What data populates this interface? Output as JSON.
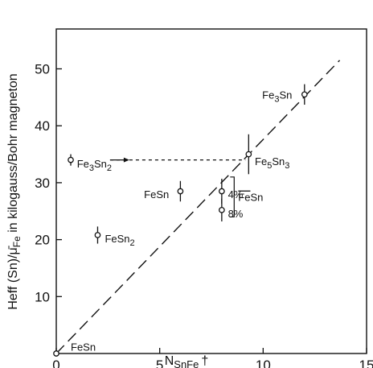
{
  "chart_data": {
    "type": "scatter",
    "title": "",
    "xlabel": "N",
    "xlabel_sub": "SnFe",
    "xlabel_suffix": "†",
    "ylabel": "Heff (Sn)/μ̄Fe in kilogauss/Bohr magneton",
    "ylabel_parts": {
      "main": "Heff (Sn)/",
      "mu": "μ̄",
      "sub": "Fe",
      "rest": " in kilogauss/Bohr magneton"
    },
    "xlim": [
      0,
      15
    ],
    "ylim": [
      0,
      57
    ],
    "xticks": [
      0,
      5,
      10,
      15
    ],
    "yticks": [
      10,
      20,
      30,
      40,
      50
    ],
    "grid": false,
    "points": [
      {
        "name": "FeSn-origin",
        "x": 0,
        "y": 0,
        "err": 0
      },
      {
        "name": "FeSn2",
        "x": 2,
        "y": 20.8,
        "err": 1.5
      },
      {
        "name": "FeSn",
        "x": 6,
        "y": 28.5,
        "err": 1.8
      },
      {
        "name": "FeSn-4pct",
        "x": 8,
        "y": 28.5,
        "err": 2.2
      },
      {
        "name": "FeSn-8pct",
        "x": 8,
        "y": 25.2,
        "err": 2.0
      },
      {
        "name": "Fe5Sn3",
        "x": 9.3,
        "y": 35,
        "err": 3.5
      },
      {
        "name": "Fe3Sn",
        "x": 12,
        "y": 45.5,
        "err": 1.8
      },
      {
        "name": "Fe3Sn2",
        "x": 0.7,
        "y": 34,
        "err": 1.0
      }
    ],
    "fit_line": {
      "x": [
        0,
        13.7
      ],
      "y": [
        0,
        51.5
      ]
    },
    "arrow_line": {
      "x": [
        2.6,
        9.3
      ],
      "y": [
        34,
        34
      ]
    },
    "bracket": {
      "x": 8.6,
      "y": [
        24,
        31
      ]
    },
    "labels": [
      {
        "text_main": "Fe",
        "sub1": "3",
        "mid": "Sn",
        "sub2": "",
        "x": 11.4,
        "y": 45.5,
        "anchor": "end"
      },
      {
        "text_main": "Fe",
        "sub1": "5",
        "mid": "Sn",
        "sub2": "3",
        "x": 9.6,
        "y": 33.8,
        "anchor": "start"
      },
      {
        "text_main": "Fe",
        "sub1": "3",
        "mid": "Sn",
        "sub2": "2",
        "x": 1.0,
        "y": 33.4,
        "anchor": "start"
      },
      {
        "text_main": "FeSn",
        "sub1": "",
        "mid": "",
        "sub2": "",
        "x": 5.45,
        "y": 28.0,
        "anchor": "end"
      },
      {
        "text_main": "FeSn",
        "sub1": "",
        "mid": "",
        "sub2": "2",
        "x": 2.35,
        "y": 20.2,
        "anchor": "start"
      },
      {
        "text_main": "FeSn",
        "sub1": "",
        "mid": "",
        "sub2": "",
        "x": 0.7,
        "y": 1.2,
        "anchor": "start"
      },
      {
        "text_main": "4%",
        "sub1": "",
        "mid": "",
        "sub2": "",
        "x": 8.3,
        "y": 28.0,
        "anchor": "start"
      },
      {
        "text_main": "8%",
        "sub1": "",
        "mid": "",
        "sub2": "",
        "x": 8.3,
        "y": 24.6,
        "anchor": "start"
      }
    ],
    "bracket_label": {
      "underlined": "Fe",
      "rest": "Sn"
    }
  }
}
